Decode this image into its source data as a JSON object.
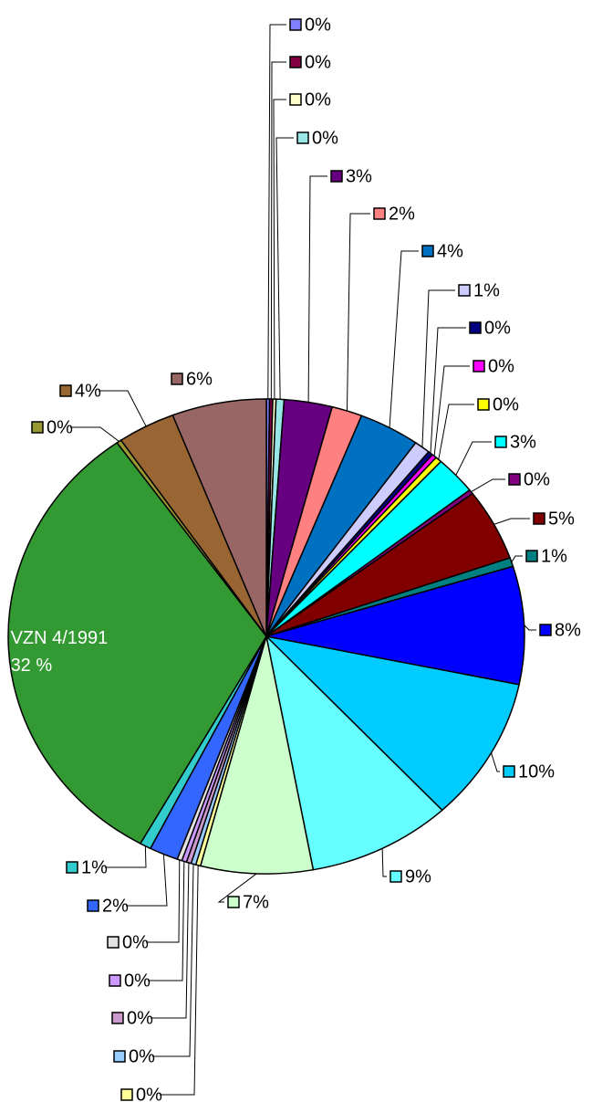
{
  "chart_data": {
    "type": "pie",
    "categories": [
      null,
      null,
      null,
      null,
      null,
      null,
      null,
      null,
      null,
      null,
      null,
      null,
      null,
      null,
      null,
      null,
      null,
      null,
      null,
      null,
      null,
      null,
      null,
      null,
      null,
      null,
      "VZN 4/1991",
      null,
      null,
      null
    ],
    "values": [
      0.2,
      0.2,
      0.2,
      0.5,
      3.0,
      1.9,
      3.8,
      1.0,
      0.3,
      0.3,
      0.4,
      2.6,
      0.3,
      4.9,
      0.6,
      8.0,
      9.8,
      9.0,
      7.0,
      0.3,
      0.3,
      0.3,
      0.3,
      0.3,
      1.8,
      0.7,
      32.0,
      0.3,
      3.6,
      5.9
    ],
    "value_labels": [
      "0%",
      "0%",
      "0%",
      "0%",
      "3%",
      "2%",
      "4%",
      "1%",
      "0%",
      "0%",
      "0%",
      "3%",
      "0%",
      "5%",
      "1%",
      "8%",
      "10%",
      "9%",
      "7%",
      "0%",
      "0%",
      "0%",
      "0%",
      "0%",
      "2%",
      "1%",
      "32 %",
      "0%",
      "4%",
      "6%"
    ],
    "colors": [
      "#8080ff",
      "#800040",
      "#ffffcc",
      "#99e6e6",
      "#660080",
      "#ff8080",
      "#0070c0",
      "#ccccff",
      "#000080",
      "#ff00ff",
      "#ffff00",
      "#00ffff",
      "#800080",
      "#800000",
      "#008080",
      "#0000ff",
      "#00ccff",
      "#66ffff",
      "#ccffcc",
      "#ffff99",
      "#99ccff",
      "#cc99cc",
      "#cc99ff",
      "#e3e3e3",
      "#3366ff",
      "#33cccc",
      "#339933",
      "#999933",
      "#996633",
      "#996666"
    ]
  }
}
